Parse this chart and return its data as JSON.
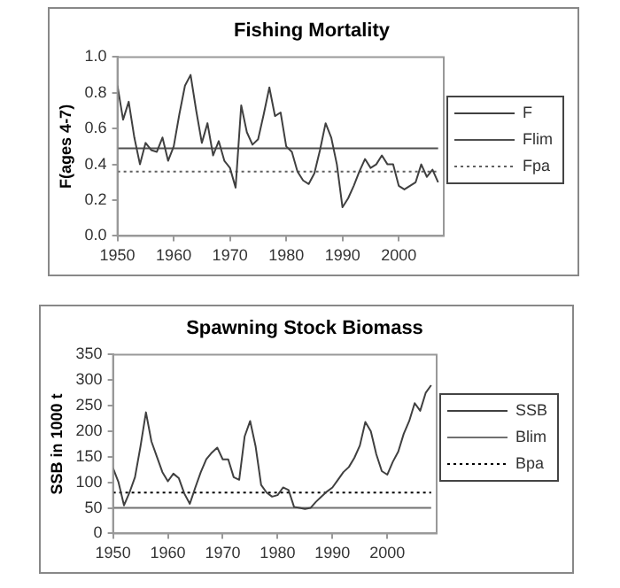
{
  "chart_data": [
    {
      "type": "line",
      "title": "Fishing Mortality",
      "ylabel": "F(ages 4-7)",
      "x": [
        1950,
        1951,
        1952,
        1953,
        1954,
        1955,
        1956,
        1957,
        1958,
        1959,
        1960,
        1961,
        1962,
        1963,
        1964,
        1965,
        1966,
        1967,
        1968,
        1969,
        1970,
        1971,
        1972,
        1973,
        1974,
        1975,
        1976,
        1977,
        1978,
        1979,
        1980,
        1981,
        1982,
        1983,
        1984,
        1985,
        1986,
        1987,
        1988,
        1989,
        1990,
        1991,
        1992,
        1993,
        1994,
        1995,
        1996,
        1997,
        1998,
        1999,
        2000,
        2001,
        2002,
        2003,
        2004,
        2005,
        2006,
        2007
      ],
      "series": [
        {
          "name": "F",
          "color": "#404040",
          "values": [
            0.84,
            0.65,
            0.75,
            0.55,
            0.4,
            0.52,
            0.48,
            0.47,
            0.55,
            0.42,
            0.5,
            0.68,
            0.84,
            0.9,
            0.7,
            0.52,
            0.63,
            0.45,
            0.53,
            0.42,
            0.38,
            0.27,
            0.73,
            0.58,
            0.51,
            0.54,
            0.68,
            0.83,
            0.67,
            0.69,
            0.5,
            0.47,
            0.36,
            0.31,
            0.29,
            0.35,
            0.48,
            0.63,
            0.55,
            0.4,
            0.16,
            0.21,
            0.28,
            0.36,
            0.43,
            0.38,
            0.4,
            0.45,
            0.4,
            0.4,
            0.28,
            0.26,
            0.28,
            0.3,
            0.4,
            0.33,
            0.37,
            0.3
          ]
        },
        {
          "name": "Flim",
          "color": "#505050",
          "x": [
            1950,
            2007
          ],
          "values": [
            0.49,
            0.49
          ],
          "line_style": "solid"
        },
        {
          "name": "Fpa",
          "color": "#606060",
          "x": [
            1950,
            2007
          ],
          "values": [
            0.36,
            0.36
          ],
          "line_style": "dotted"
        }
      ],
      "xlim": [
        1950,
        2008
      ],
      "xticks": [
        1950,
        1960,
        1970,
        1980,
        1990,
        2000
      ],
      "ylim": [
        0,
        1
      ],
      "yticks": [
        {
          "value": 0,
          "label": "0.0"
        },
        0.2,
        0.4,
        0.6,
        0.8,
        {
          "value": 1,
          "label": "1.0"
        }
      ],
      "legend": "right",
      "grid": false,
      "marker": "none"
    },
    {
      "type": "line",
      "title": "Spawning Stock Biomass",
      "ylabel": "SSB in 1000 t",
      "x": [
        1950,
        1951,
        1952,
        1953,
        1954,
        1955,
        1956,
        1957,
        1958,
        1959,
        1960,
        1961,
        1962,
        1963,
        1964,
        1965,
        1966,
        1967,
        1968,
        1969,
        1970,
        1971,
        1972,
        1973,
        1974,
        1975,
        1976,
        1977,
        1978,
        1979,
        1980,
        1981,
        1982,
        1983,
        1984,
        1985,
        1986,
        1987,
        1988,
        1989,
        1990,
        1991,
        1992,
        1993,
        1994,
        1995,
        1996,
        1997,
        1998,
        1999,
        2000,
        2001,
        2002,
        2003,
        2004,
        2005,
        2006,
        2007,
        2008
      ],
      "series": [
        {
          "name": "SSB",
          "color": "#404040",
          "values": [
            128,
            100,
            55,
            80,
            110,
            170,
            237,
            180,
            150,
            120,
            102,
            117,
            108,
            78,
            58,
            90,
            120,
            145,
            158,
            168,
            145,
            145,
            110,
            105,
            190,
            220,
            170,
            95,
            80,
            72,
            75,
            90,
            85,
            52,
            50,
            48,
            50,
            62,
            72,
            82,
            90,
            105,
            120,
            130,
            148,
            172,
            218,
            200,
            155,
            122,
            115,
            140,
            160,
            195,
            220,
            255,
            240,
            275,
            290
          ]
        },
        {
          "name": "Blim",
          "color": "#707070",
          "x": [
            1950,
            2008
          ],
          "values": [
            50,
            50
          ],
          "line_style": "solid"
        },
        {
          "name": "Bpa",
          "color": "#000000",
          "x": [
            1950,
            2008
          ],
          "values": [
            80,
            80
          ],
          "line_style": "dotted"
        }
      ],
      "xlim": [
        1950,
        2009
      ],
      "xticks": [
        1950,
        1960,
        1970,
        1980,
        1990,
        2000
      ],
      "ylim": [
        0,
        350
      ],
      "yticks": [
        0,
        50,
        100,
        150,
        200,
        250,
        300,
        350
      ],
      "legend": "right",
      "grid": false,
      "marker": "none"
    }
  ]
}
